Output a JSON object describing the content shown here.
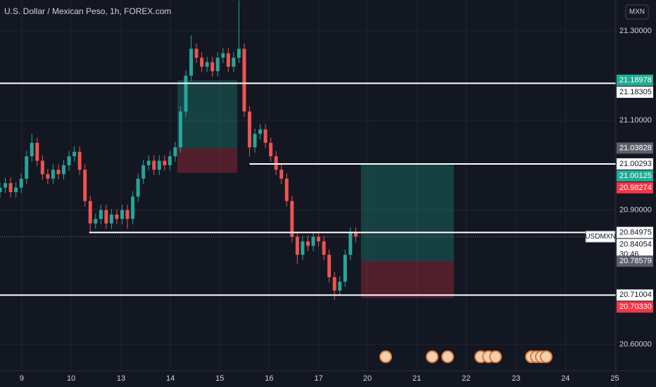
{
  "chart_data": {
    "type": "candlestick",
    "title": "U.S. Dollar / Mexican Peso, 1h, FOREX.com",
    "currency": "MXN",
    "symbol": "USDMXN",
    "countdown": "30:46",
    "up_color": "#26a69a",
    "down_color": "#ef5350",
    "xlim": [
      0,
      116
    ],
    "ylim": [
      20.544,
      21.369
    ],
    "xticks": [
      {
        "value": 4.1,
        "label": "9"
      },
      {
        "value": 13.4,
        "label": "10"
      },
      {
        "value": 22.8,
        "label": "13"
      },
      {
        "value": 32.1,
        "label": "14"
      },
      {
        "value": 41.4,
        "label": "15"
      },
      {
        "value": 50.7,
        "label": "16"
      },
      {
        "value": 60,
        "label": "17"
      },
      {
        "value": 69.2,
        "label": "20"
      },
      {
        "value": 78.5,
        "label": "21"
      },
      {
        "value": 87.8,
        "label": "22"
      },
      {
        "value": 97.2,
        "label": "23"
      },
      {
        "value": 106.5,
        "label": "24"
      },
      {
        "value": 115.8,
        "label": "25"
      }
    ],
    "yticks": [
      {
        "value": 21.3,
        "label": "21.30000"
      },
      {
        "value": 21.1,
        "label": "21.10000"
      },
      {
        "value": 20.9,
        "label": "20.90000"
      },
      {
        "value": 20.6,
        "label": "20.60000"
      }
    ],
    "grid": true,
    "x": [
      0,
      1,
      2,
      3,
      4,
      5,
      6,
      7,
      8,
      9,
      10,
      11,
      12,
      13,
      14,
      15,
      16,
      17,
      18,
      19,
      20,
      21,
      22,
      23,
      24,
      25,
      26,
      27,
      28,
      29,
      30,
      31,
      32,
      33,
      34,
      35,
      36,
      37,
      38,
      39,
      40,
      41,
      42,
      43,
      44,
      45,
      46,
      47,
      48,
      49,
      50,
      51,
      52,
      53,
      54,
      55,
      56,
      57,
      58,
      59,
      60,
      61,
      62,
      63,
      64,
      65,
      66,
      67
    ],
    "open": [
      20.94,
      20.95,
      20.96,
      20.94,
      20.95,
      20.97,
      21.02,
      21.05,
      21.01,
      20.98,
      20.97,
      20.99,
      20.98,
      21.0,
      21.02,
      21.03,
      20.99,
      20.92,
      20.87,
      20.88,
      20.9,
      20.87,
      20.89,
      20.88,
      20.9,
      20.88,
      20.93,
      20.97,
      21.0,
      21.01,
      20.99,
      21.01,
      21.0,
      21.02,
      21.04,
      21.12,
      21.2,
      21.26,
      21.24,
      21.22,
      21.23,
      21.21,
      21.24,
      21.25,
      21.22,
      21.24,
      21.26,
      21.12,
      21.04,
      21.07,
      21.08,
      21.05,
      21.02,
      20.99,
      20.97,
      20.92,
      20.84,
      20.8,
      20.83,
      20.82,
      20.84,
      20.83,
      20.8,
      20.75,
      20.72,
      20.74,
      20.8,
      20.85
    ],
    "high": [
      20.962,
      20.972,
      20.972,
      20.962,
      20.982,
      21.032,
      21.07,
      21.062,
      21.022,
      20.992,
      21.002,
      21.002,
      21.012,
      21.032,
      21.042,
      21.042,
      21.002,
      20.932,
      20.892,
      20.912,
      20.912,
      20.902,
      20.902,
      20.912,
      20.912,
      20.942,
      20.982,
      21.012,
      21.022,
      21.022,
      21.022,
      21.022,
      21.032,
      21.052,
      21.132,
      21.212,
      21.29,
      21.272,
      21.252,
      21.242,
      21.242,
      21.252,
      21.262,
      21.262,
      21.252,
      21.368,
      21.272,
      21.132,
      21.082,
      21.092,
      21.092,
      21.062,
      21.032,
      21.002,
      20.982,
      20.932,
      20.852,
      20.842,
      20.842,
      20.852,
      20.852,
      20.842,
      20.812,
      20.762,
      20.752,
      20.812,
      20.862,
      20.862
    ],
    "low": [
      20.928,
      20.938,
      20.928,
      20.928,
      20.938,
      20.958,
      21.008,
      20.998,
      20.968,
      20.958,
      20.958,
      20.968,
      20.968,
      20.988,
      21.008,
      20.978,
      20.908,
      20.85,
      20.858,
      20.868,
      20.858,
      20.858,
      20.868,
      20.868,
      20.858,
      20.868,
      20.918,
      20.958,
      20.988,
      20.978,
      20.978,
      20.988,
      20.988,
      21.008,
      21.028,
      21.108,
      21.188,
      21.228,
      21.208,
      21.208,
      21.198,
      21.198,
      21.228,
      21.208,
      21.208,
      21.228,
      21.108,
      21.02,
      21.028,
      21.058,
      21.038,
      21.008,
      20.978,
      20.958,
      20.908,
      20.828,
      20.78,
      20.788,
      20.808,
      20.808,
      20.818,
      20.788,
      20.738,
      20.7,
      20.708,
      20.728,
      20.788,
      20.828
    ],
    "close": [
      20.95,
      20.96,
      20.94,
      20.95,
      20.97,
      21.02,
      21.05,
      21.01,
      20.98,
      20.97,
      20.99,
      20.98,
      21.0,
      21.02,
      21.03,
      20.99,
      20.92,
      20.87,
      20.88,
      20.9,
      20.87,
      20.89,
      20.88,
      20.9,
      20.88,
      20.93,
      20.97,
      21.0,
      21.01,
      20.99,
      21.01,
      21.0,
      21.02,
      21.04,
      21.12,
      21.2,
      21.26,
      21.24,
      21.22,
      21.23,
      21.21,
      21.24,
      21.25,
      21.22,
      21.24,
      21.26,
      21.12,
      21.04,
      21.07,
      21.08,
      21.05,
      21.02,
      20.99,
      20.97,
      20.92,
      20.84,
      20.8,
      20.83,
      20.82,
      20.84,
      20.83,
      20.8,
      20.75,
      20.72,
      20.74,
      20.8,
      20.85,
      20.841
    ],
    "positions": [
      {
        "x": [
          33.4,
          44.7
        ],
        "target": 21.18978,
        "entry": 21.03828,
        "stop": 20.98274
      },
      {
        "x": [
          68,
          85.5
        ],
        "target": 21.00125,
        "entry": 20.78579,
        "stop": 20.7033
      }
    ],
    "price_tags": [
      {
        "value": 21.18978,
        "color": "#22ab94"
      },
      {
        "value": 21.18305,
        "color": "#ffffff",
        "line_from": 0
      },
      {
        "value": 21.03828,
        "color": "#5d606b"
      },
      {
        "value": 21.00293,
        "color": "#ffffff",
        "line_from": 47
      },
      {
        "value": 21.00125,
        "color": "#22ab94"
      },
      {
        "value": 20.98274,
        "color": "#f23645"
      },
      {
        "value": 20.84975,
        "color": "#ffffff",
        "line_from": 16.8
      },
      {
        "value": 20.84054,
        "color": "#ffffff",
        "current": true
      },
      {
        "value": 20.78579,
        "color": "#5d606b"
      },
      {
        "value": 20.71004,
        "color": "#ffffff",
        "line_from": 0
      },
      {
        "value": 20.7033,
        "label": "20.70330",
        "color": "#f23645"
      }
    ]
  }
}
